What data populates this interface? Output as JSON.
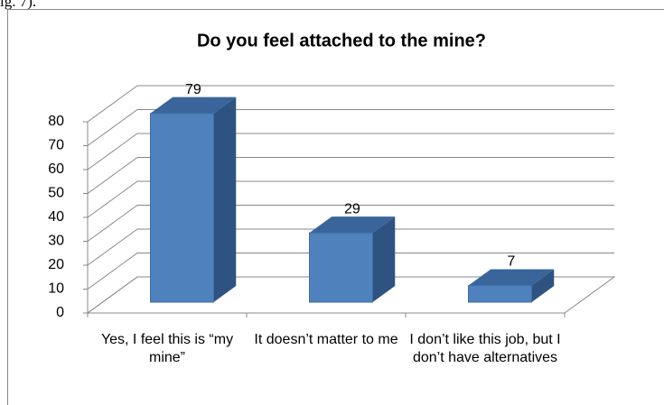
{
  "page_fragment": "ig. 7).",
  "chart_data": {
    "type": "bar3d",
    "title": "Do you feel attached to the mine?",
    "categories": [
      "Yes, I feel this is “my mine”",
      "It doesn’t matter to me",
      "I don’t like this job, but I don’t have alternatives"
    ],
    "values": [
      79,
      29,
      7
    ],
    "color": "#4f81bd",
    "ylim": [
      0,
      80
    ],
    "yticks": [
      0,
      10,
      20,
      30,
      40,
      50,
      60,
      70,
      80
    ],
    "grid": true,
    "data_labels": true
  }
}
